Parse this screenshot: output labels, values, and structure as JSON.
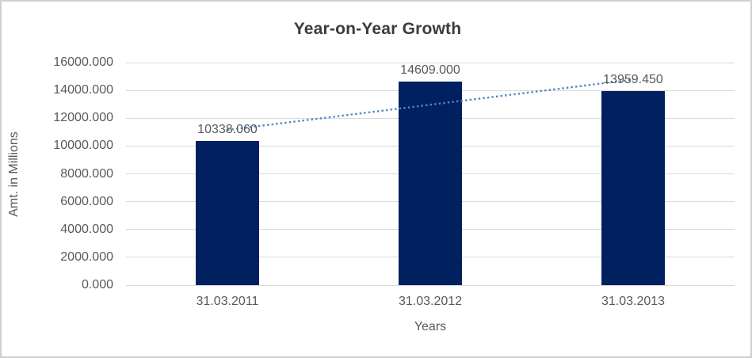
{
  "chart_data": {
    "type": "bar",
    "title": "Year-on-Year Growth",
    "xlabel": "Years",
    "ylabel": "Amt. in Millions",
    "categories": [
      "31.03.2011",
      "31.03.2012",
      "31.03.2013"
    ],
    "values": [
      10338.06,
      14609.0,
      13959.45
    ],
    "value_labels": [
      "10338.060",
      "14609.000",
      "13959.450"
    ],
    "ylim": [
      0,
      16000
    ],
    "ytick_step": 2000,
    "ytick_labels": [
      "0.000",
      "2000.000",
      "4000.000",
      "6000.000",
      "8000.000",
      "10000.000",
      "12000.000",
      "14000.000",
      "16000.000"
    ],
    "grid": "horizontal",
    "legend_position": "none",
    "trendline": {
      "type": "linear",
      "style": "dotted",
      "series": "values"
    }
  },
  "colors": {
    "bar": "#002060",
    "trendline": "#4f86c6",
    "gridline": "#d9d9d9",
    "axis_text": "#595959",
    "title_text": "#3b3b3b",
    "chart_border": "#d0cece",
    "background": "#ffffff"
  }
}
